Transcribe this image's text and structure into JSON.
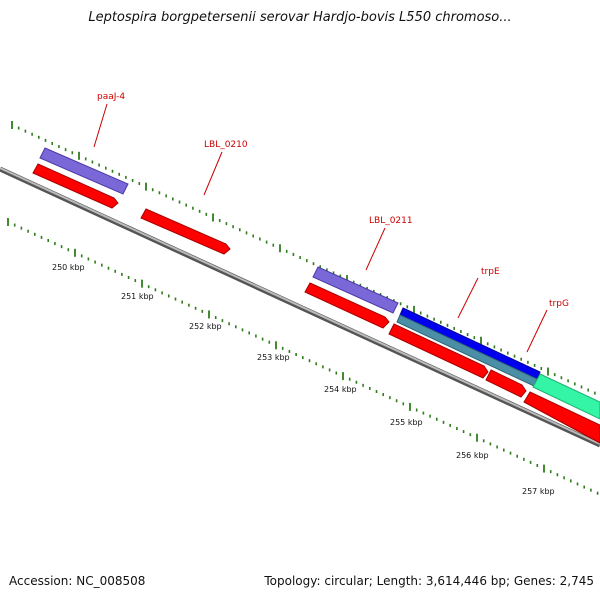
{
  "title": "Leptospira borgpetersenii serovar Hardjo-bovis L550 chromoso...",
  "accession": "Accession: NC_008508",
  "summary": "Topology: circular; Length: 3,614,446 bp; Genes: 2,745",
  "colors": {
    "backbone": "#888888",
    "tick": "#2f7d1a",
    "label": "#cc0000",
    "cds": "#ff0000",
    "gene_purple": "#7b68d8",
    "gene_blue": "#0000ee",
    "gene_teal": "#4a8fa6",
    "gene_mint": "#33f5a5"
  },
  "scale_labels": [
    "250 kbp",
    "251 kbp",
    "252 kbp",
    "253 kbp",
    "254 kbp",
    "255 kbp",
    "256 kbp",
    "257 kbp"
  ],
  "gene_labels": [
    {
      "id": "paaJ-4",
      "text": "paaJ-4"
    },
    {
      "id": "LBL_0210",
      "text": "LBL_0210"
    },
    {
      "id": "LBL_0211",
      "text": "LBL_0211"
    },
    {
      "id": "trpE",
      "text": "trpE"
    },
    {
      "id": "trpG",
      "text": "trpG"
    }
  ]
}
